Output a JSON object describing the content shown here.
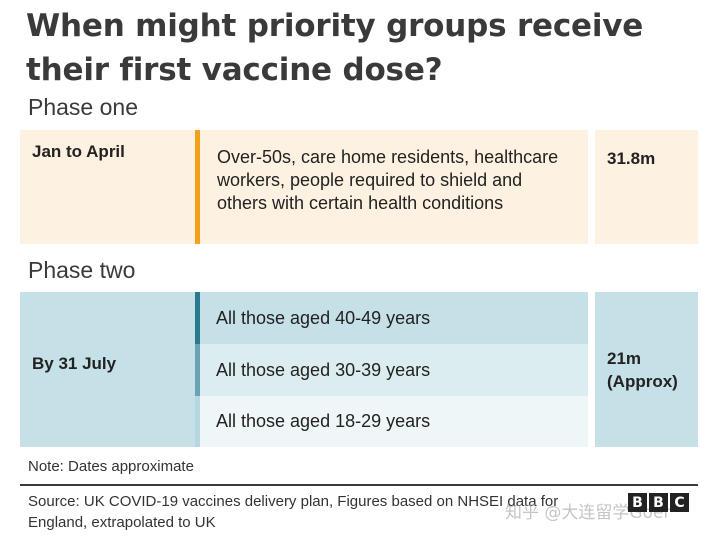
{
  "title": "When might priority groups receive their first vaccine dose?",
  "phase_one": {
    "label": "Phase one",
    "period": "Jan to April",
    "groups": "Over-50s, care home residents, healthcare workers, people required to shield and others with certain health conditions",
    "count": "31.8m",
    "accent_color": "#f2a11a",
    "bg_color": "#fdf1e1"
  },
  "phase_two": {
    "label": "Phase two",
    "period": "By 31 July",
    "groups": [
      "All those aged 40-49 years",
      "All those aged 30-39 years",
      "All those aged 18-29 years"
    ],
    "count": "21m (Approx)",
    "bg_color": "#c5e0e6"
  },
  "note": "Note: Dates approximate",
  "source": "Source: UK COVID-19 vaccines delivery plan, Figures based on NHSEI data for England, extrapolated to UK",
  "logo": [
    "B",
    "B",
    "C"
  ],
  "watermark": "知乎 @大连留学Goer"
}
